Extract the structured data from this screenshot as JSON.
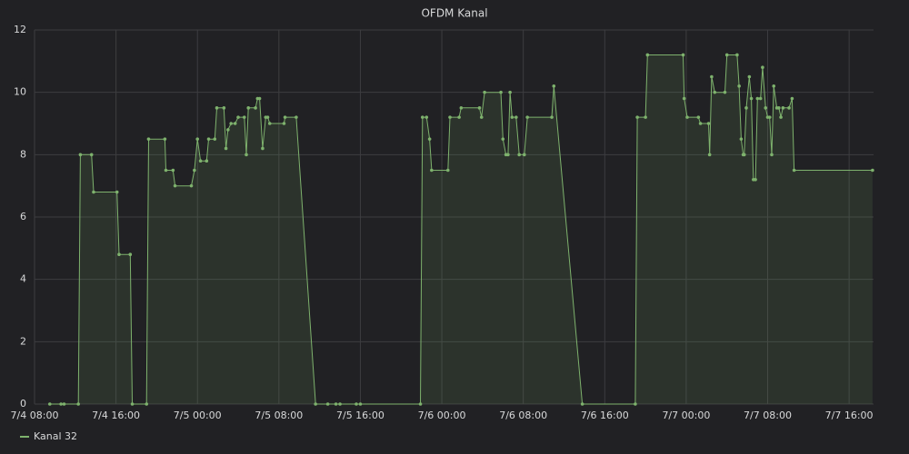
{
  "chart_data": {
    "type": "line",
    "title": "OFDM Kanal",
    "x": [
      9.5,
      10.6,
      10.9,
      12.3,
      12.5,
      13.6,
      13.8,
      16.1,
      16.3,
      17.4,
      17.6,
      19.0,
      19.2,
      20.8,
      20.9,
      21.6,
      21.8,
      23.4,
      23.7,
      24.0,
      24.3,
      24.9,
      25.1,
      25.7,
      25.9,
      26.6,
      26.8,
      27.0,
      27.3,
      27.7,
      28.0,
      28.6,
      28.8,
      29.0,
      29.7,
      29.9,
      30.1,
      30.4,
      30.7,
      30.9,
      31.1,
      32.5,
      32.6,
      33.7,
      35.6,
      36.8,
      37.6,
      38.0,
      39.6,
      40.0,
      45.9,
      46.1,
      46.5,
      46.8,
      47.0,
      48.6,
      48.8,
      49.7,
      49.9,
      51.7,
      51.9,
      52.2,
      53.8,
      54.0,
      54.3,
      54.5,
      54.7,
      54.9,
      55.3,
      55.6,
      56.1,
      56.4,
      58.8,
      59.0,
      61.8,
      67.0,
      67.2,
      68.0,
      68.2,
      71.7,
      71.8,
      72.1,
      73.2,
      73.4,
      74.2,
      74.3,
      74.5,
      74.8,
      75.8,
      76.0,
      77.0,
      77.2,
      77.4,
      77.6,
      77.7,
      77.9,
      78.2,
      78.4,
      78.6,
      78.8,
      79.0,
      79.3,
      79.5,
      79.8,
      80.0,
      80.2,
      80.4,
      80.6,
      80.9,
      81.1,
      81.3,
      81.5,
      82.1,
      82.4,
      82.6,
      90.3
    ],
    "series": [
      {
        "name": "Kanal 32",
        "color": "#7eb26d",
        "values": [
          0,
          0,
          0,
          0,
          8,
          8,
          6.8,
          6.8,
          4.8,
          4.8,
          0,
          0,
          8.5,
          8.5,
          7.5,
          7.5,
          7,
          7,
          7.5,
          8.5,
          7.8,
          7.8,
          8.5,
          8.5,
          9.5,
          9.5,
          8.2,
          8.8,
          9,
          9,
          9.2,
          9.2,
          8,
          9.5,
          9.5,
          9.8,
          9.8,
          8.2,
          9.2,
          9.2,
          9,
          9,
          9.2,
          9.2,
          0,
          0,
          0,
          0,
          0,
          0,
          0,
          9.2,
          9.2,
          8.5,
          7.5,
          7.5,
          9.2,
          9.2,
          9.5,
          9.5,
          9.2,
          10,
          10,
          8.5,
          8,
          8,
          10,
          9.2,
          9.2,
          8,
          8,
          9.2,
          9.2,
          10.2,
          0,
          0,
          9.2,
          9.2,
          11.2,
          11.2,
          9.8,
          9.2,
          9.2,
          9,
          9,
          8,
          10.5,
          10,
          10,
          11.2,
          11.2,
          10.2,
          8.5,
          8,
          8,
          9.5,
          10.5,
          9.8,
          7.2,
          7.2,
          9.8,
          9.8,
          10.8,
          9.5,
          9.2,
          9.2,
          8,
          10.2,
          9.5,
          9.5,
          9.2,
          9.5,
          9.5,
          9.8,
          7.5,
          7.5
        ]
      }
    ],
    "xlim": [
      8,
      90.4
    ],
    "xticks": [
      {
        "value": 8,
        "label": "7/4 08:00"
      },
      {
        "value": 16,
        "label": "7/4 16:00"
      },
      {
        "value": 24,
        "label": "7/5 00:00"
      },
      {
        "value": 32,
        "label": "7/5 08:00"
      },
      {
        "value": 40,
        "label": "7/5 16:00"
      },
      {
        "value": 48,
        "label": "7/6 00:00"
      },
      {
        "value": 56,
        "label": "7/6 08:00"
      },
      {
        "value": 64,
        "label": "7/6 16:00"
      },
      {
        "value": 72,
        "label": "7/7 00:00"
      },
      {
        "value": 80,
        "label": "7/7 08:00"
      },
      {
        "value": 88,
        "label": "7/7 16:00"
      }
    ],
    "ylim": [
      0,
      12
    ],
    "yticks": [
      0,
      2,
      4,
      6,
      8,
      10,
      12
    ],
    "grid": true,
    "legend": "bottom-left"
  }
}
